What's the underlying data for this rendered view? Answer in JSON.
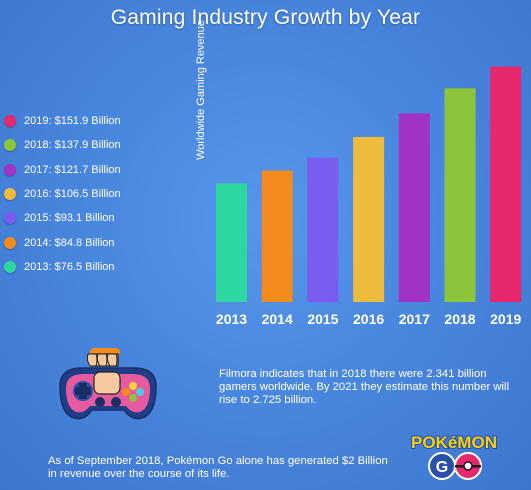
{
  "chart_data": {
    "type": "bar",
    "title": "Gaming Industry Growth by Year",
    "ylabel": "Worldwide Gaming Revenue",
    "xlabel": "",
    "ylim": [
      0,
      160
    ],
    "categories": [
      "2013",
      "2014",
      "2015",
      "2016",
      "2017",
      "2018",
      "2019"
    ],
    "values": [
      76.5,
      84.8,
      93.1,
      106.5,
      121.7,
      137.9,
      151.9
    ],
    "colors": [
      "#2ed6a0",
      "#f28a1c",
      "#7a5cf0",
      "#eebc3c",
      "#a032c8",
      "#8cc43a",
      "#e8286e"
    ],
    "grid": false
  },
  "legend": [
    {
      "label": "2019: $151.9 Billion",
      "color": "#e8286e"
    },
    {
      "label": "2018: $137.9 Billion",
      "color": "#8cc43a"
    },
    {
      "label": "2017: $121.7 Billion",
      "color": "#a032c8"
    },
    {
      "label": "2016: $106.5 Billion",
      "color": "#eebc3c"
    },
    {
      "label": "2015: $93.1 Billion",
      "color": "#7a5cf0"
    },
    {
      "label": "2014: $84.8 Billion",
      "color": "#f28a1c"
    },
    {
      "label": "2013: $76.5 Billion",
      "color": "#2ed6a0"
    }
  ],
  "notes": {
    "filmora": "Filmora indicates that in 2018 there were 2.341 billion gamers worldwide. By 2021 they estimate this number will rise to 2.725 billion.",
    "pokemon": "As of September 2018, Pokémon Go alone has generated $2 Billion in revenue over the course of its life."
  },
  "logo": {
    "line1": "POKéMON",
    "line2": "GO"
  },
  "icons": {
    "gamepad": "gamepad-fist-icon",
    "pokemon": "pokemon-go-logo"
  }
}
